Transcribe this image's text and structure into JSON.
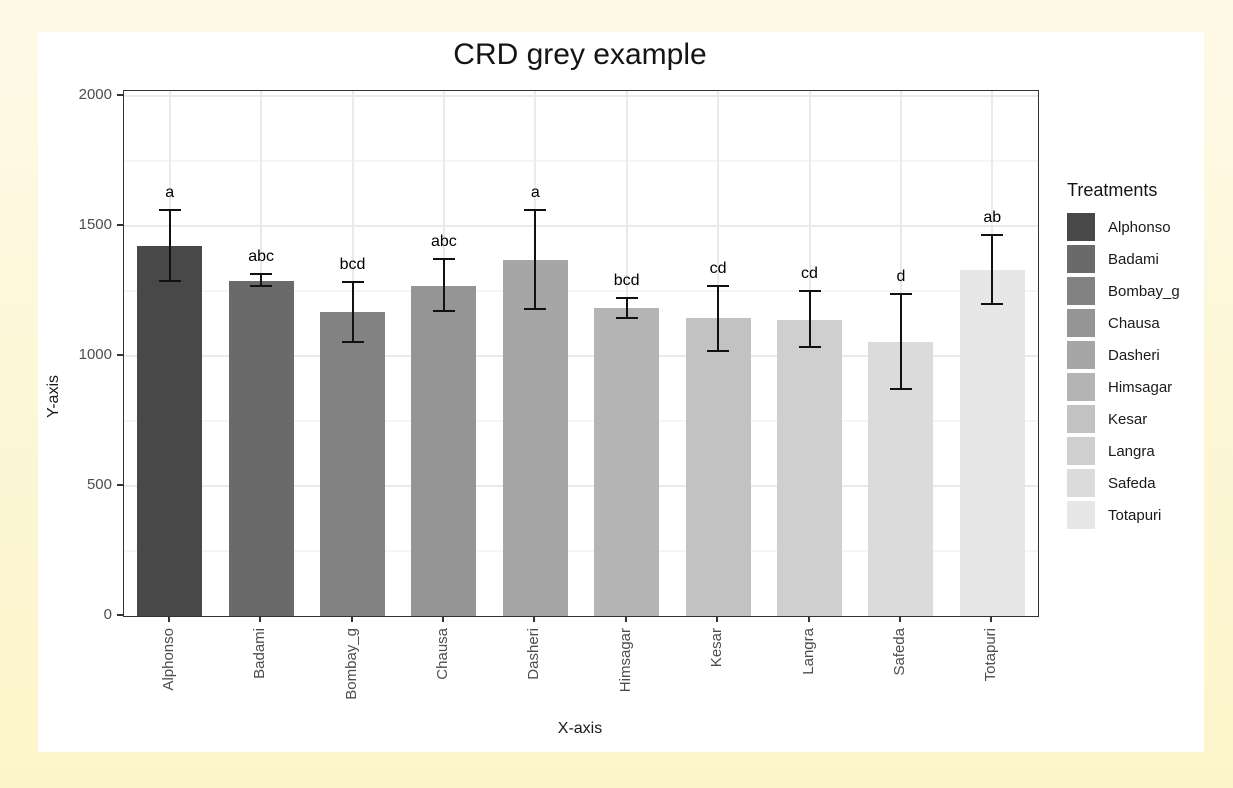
{
  "chart_data": {
    "type": "bar",
    "title": "CRD grey example",
    "xlabel": "X-axis",
    "ylabel": "Y-axis",
    "categories": [
      "Alphonso",
      "Badami",
      "Bombay_g",
      "Chausa",
      "Dasheri",
      "Himsagar",
      "Kesar",
      "Langra",
      "Safeda",
      "Totapuri"
    ],
    "values": [
      1425,
      1290,
      1170,
      1270,
      1370,
      1185,
      1145,
      1140,
      1055,
      1330
    ],
    "error_low": [
      1290,
      1268,
      1055,
      1172,
      1180,
      1145,
      1020,
      1035,
      875,
      1200
    ],
    "error_high": [
      1560,
      1315,
      1285,
      1372,
      1560,
      1225,
      1270,
      1250,
      1240,
      1465
    ],
    "sig_letters": [
      "a",
      "abc",
      "bcd",
      "abc",
      "a",
      "bcd",
      "cd",
      "cd",
      "d",
      "ab"
    ],
    "bar_colors": [
      "#484848",
      "#6A6A6A",
      "#828282",
      "#959595",
      "#A6A6A6",
      "#B4B4B4",
      "#C2C2C2",
      "#CFCFCF",
      "#DBDBDB",
      "#E7E7E7"
    ],
    "ylim": [
      0,
      2000
    ],
    "yticks": [
      0,
      500,
      1000,
      1500,
      2000
    ],
    "yticks_minor": [
      250,
      750,
      1250,
      1750
    ],
    "grid": "major-and-minor",
    "legend_position": "right"
  },
  "legend": {
    "title": "Treatments",
    "items": [
      {
        "label": "Alphonso",
        "color": "#484848"
      },
      {
        "label": "Badami",
        "color": "#6A6A6A"
      },
      {
        "label": "Bombay_g",
        "color": "#828282"
      },
      {
        "label": "Chausa",
        "color": "#959595"
      },
      {
        "label": "Dasheri",
        "color": "#A6A6A6"
      },
      {
        "label": "Himsagar",
        "color": "#B4B4B4"
      },
      {
        "label": "Kesar",
        "color": "#C2C2C2"
      },
      {
        "label": "Langra",
        "color": "#CFCFCF"
      },
      {
        "label": "Safeda",
        "color": "#DBDBDB"
      },
      {
        "label": "Totapuri",
        "color": "#E7E7E7"
      }
    ]
  },
  "colors": {
    "page_background_top": "#FEFAE8",
    "page_background_bottom": "#FDF5CA",
    "card_background": "#FFFFFF",
    "panel_border": "#333333",
    "grid_major": "#EAEAEA",
    "grid_minor": "#F5F5F5",
    "tick_label": "#4D4D4D",
    "error_bar": "#111111"
  }
}
